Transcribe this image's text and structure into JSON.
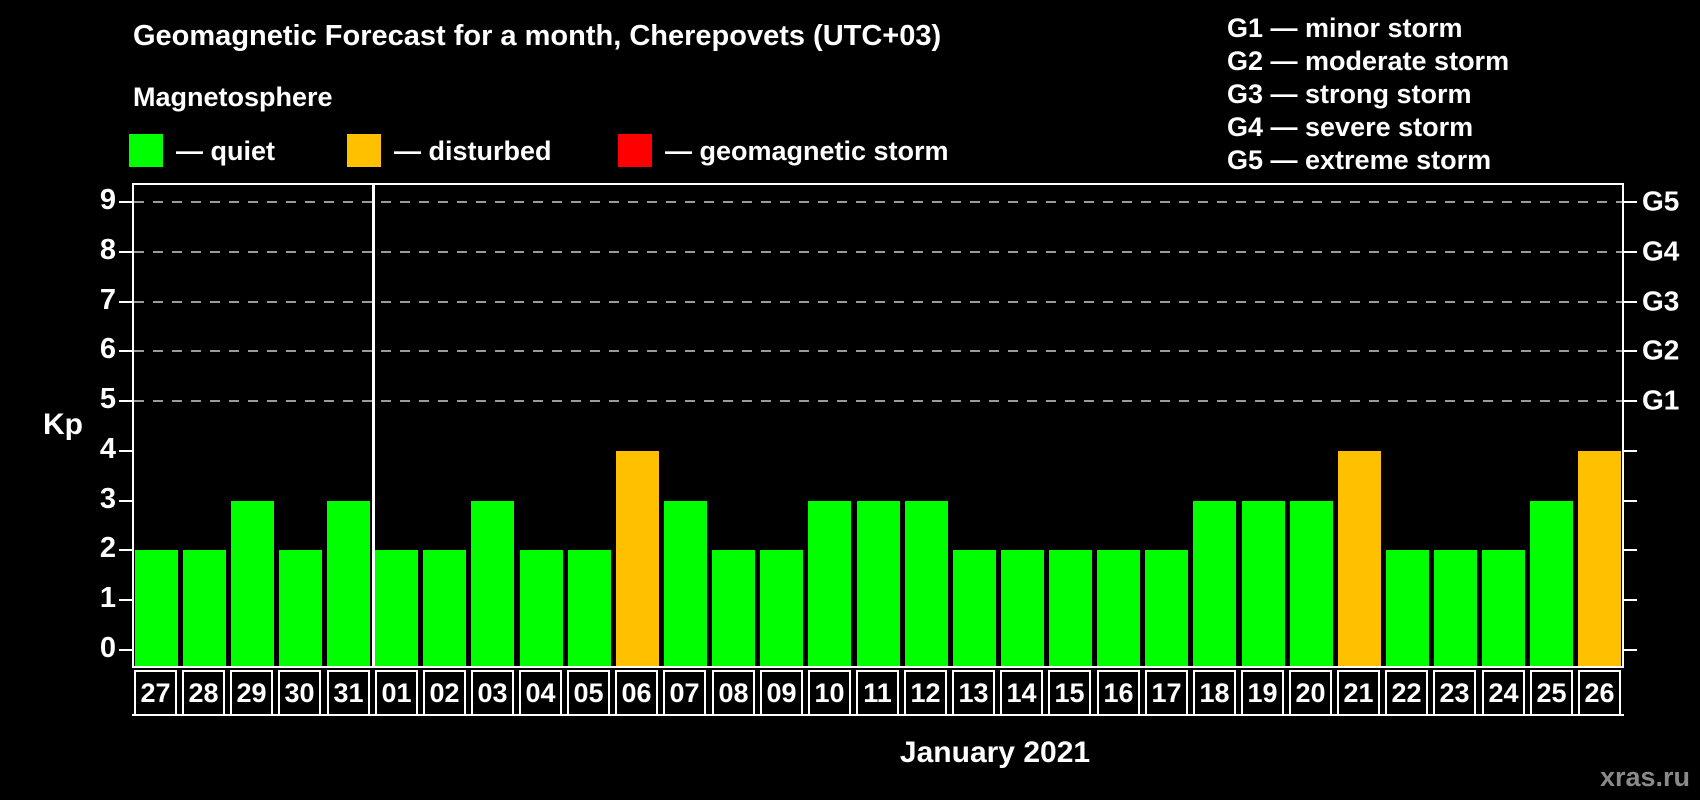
{
  "header": {
    "title": "Geomagnetic Forecast for a month, Cherepovets (UTC+03)",
    "subtitle": "Magnetosphere"
  },
  "legend": {
    "items": [
      {
        "name": "quiet",
        "label": "— quiet",
        "color": "#00FF00"
      },
      {
        "name": "disturbed",
        "label": "— disturbed",
        "color": "#FFC000"
      },
      {
        "name": "storm",
        "label": "— geomagnetic storm",
        "color": "#FF0000"
      }
    ]
  },
  "g_legend": [
    {
      "code": "G1",
      "label": "G1 — minor storm"
    },
    {
      "code": "G2",
      "label": "G2 — moderate storm"
    },
    {
      "code": "G3",
      "label": "G3 — strong storm"
    },
    {
      "code": "G4",
      "label": "G4 — severe storm"
    },
    {
      "code": "G5",
      "label": "G5 — extreme storm"
    }
  ],
  "chart_data": {
    "type": "bar",
    "title": "Geomagnetic Forecast for a month, Cherepovets (UTC+03)",
    "xlabel": "January 2021",
    "ylabel": "Kp",
    "ylim": [
      0,
      9
    ],
    "y_ticks": [
      0,
      1,
      2,
      3,
      4,
      5,
      6,
      7,
      8,
      9
    ],
    "grid_levels": [
      5,
      6,
      7,
      8,
      9
    ],
    "right_axis_labels": [
      {
        "kp": 5,
        "label": "G1"
      },
      {
        "kp": 6,
        "label": "G2"
      },
      {
        "kp": 7,
        "label": "G3"
      },
      {
        "kp": 8,
        "label": "G4"
      },
      {
        "kp": 9,
        "label": "G5"
      }
    ],
    "legend_position": "top",
    "grid": "dashed horizontal lines at storm levels G1–G5 only",
    "month_boundary_index": 5,
    "categories": [
      "27",
      "28",
      "29",
      "30",
      "31",
      "01",
      "02",
      "03",
      "04",
      "05",
      "06",
      "07",
      "08",
      "09",
      "10",
      "11",
      "12",
      "13",
      "14",
      "15",
      "16",
      "17",
      "18",
      "19",
      "20",
      "21",
      "22",
      "23",
      "24",
      "25",
      "26"
    ],
    "values": [
      2,
      2,
      3,
      2,
      3,
      2,
      2,
      3,
      2,
      2,
      4,
      3,
      2,
      2,
      3,
      3,
      3,
      2,
      2,
      2,
      2,
      2,
      3,
      3,
      3,
      4,
      2,
      2,
      2,
      3,
      4
    ],
    "statuses": [
      "quiet",
      "quiet",
      "quiet",
      "quiet",
      "quiet",
      "quiet",
      "quiet",
      "quiet",
      "quiet",
      "quiet",
      "disturbed",
      "quiet",
      "quiet",
      "quiet",
      "quiet",
      "quiet",
      "quiet",
      "quiet",
      "quiet",
      "quiet",
      "quiet",
      "quiet",
      "quiet",
      "quiet",
      "quiet",
      "disturbed",
      "quiet",
      "quiet",
      "quiet",
      "quiet",
      "disturbed"
    ],
    "colors": {
      "quiet": "#00FF00",
      "disturbed": "#FFC000",
      "storm": "#FF0000"
    }
  },
  "footer": {
    "xlabel": "January 2021",
    "watermark": "xras.ru"
  }
}
